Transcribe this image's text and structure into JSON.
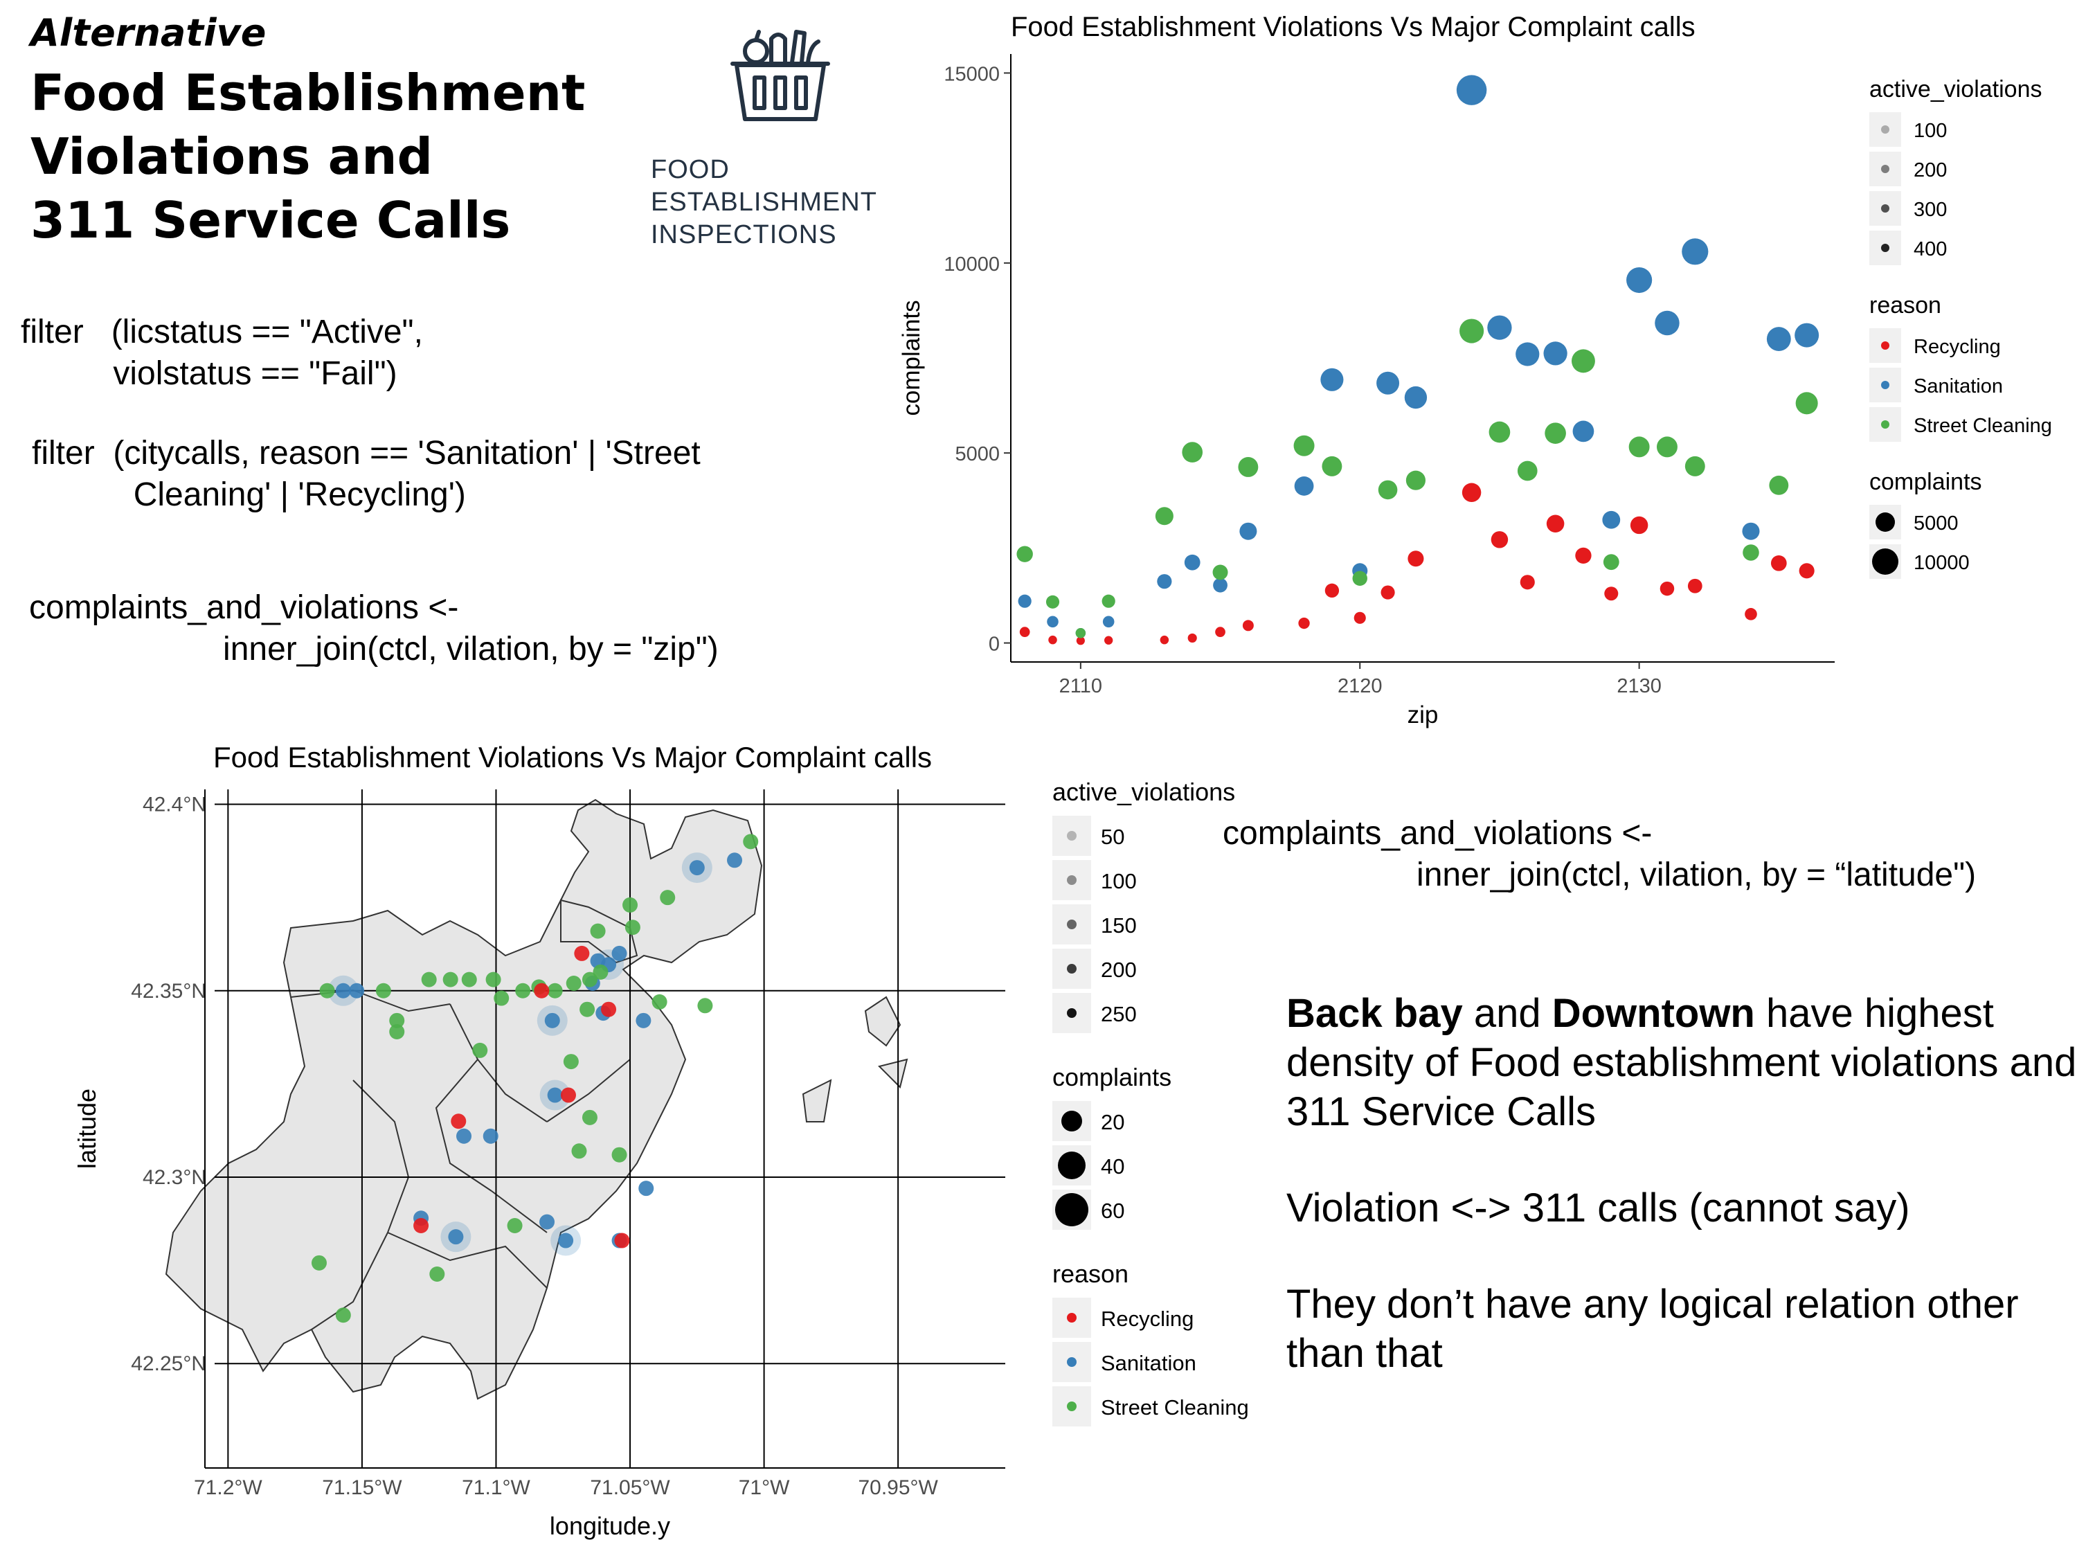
{
  "header": {
    "alt_label": "Alternative",
    "title_lines": [
      "Food Establishment",
      "Violations and",
      "311 Service Calls"
    ]
  },
  "logo": {
    "icon": "basket-icon",
    "text_lines": [
      "FOOD",
      "ESTABLISHMENT",
      "INSPECTIONS"
    ]
  },
  "code": {
    "filter1": "filter   (licstatus == \"Active\",\n          violstatus == \"Fail\")",
    "filter2": "filter  (citycalls, reason == 'Sanitation' | 'Street\n           Cleaning' | 'Recycling')",
    "join_zip": "complaints_and_violations <-\n                     inner_join(ctcl, vilation, by = \"zip\")",
    "join_lat": "complaints_and_violations <-\n                     inner_join(ctcl, vilation, by = “latitude\")"
  },
  "conclusion": {
    "p1_bold1": "Back bay",
    "p1_text1": " and ",
    "p1_bold2": "Downtown",
    "p1_text2": " have highest density of Food establishment violations  and 311 Service Calls",
    "p2": "Violation <-> 311 calls (cannot say)",
    "p3": "They don’t have any logical relation other than that"
  },
  "colors": {
    "Recycling": "#e41a1c",
    "Sanitation": "#377eb8",
    "Street Cleaning": "#4daf4a"
  },
  "chart_data": [
    {
      "type": "scatter",
      "title": "Food Establishment Violations Vs Major Complaint calls",
      "xlabel": "zip",
      "ylabel": "complaints",
      "xlim": [
        2107.5,
        2137
      ],
      "ylim": [
        -500,
        15500
      ],
      "xticks": [
        2110,
        2120,
        2130
      ],
      "yticks": [
        0,
        5000,
        10000,
        15000
      ],
      "grid": false,
      "legend_position": "right",
      "legends": {
        "active_violations": {
          "title": "active_violations",
          "items": [
            "100",
            "200",
            "300",
            "400"
          ]
        },
        "reason": {
          "title": "reason",
          "items": [
            "Recycling",
            "Sanitation",
            "Street Cleaning"
          ]
        },
        "complaints": {
          "title": "complaints",
          "items": [
            "5000",
            "10000"
          ]
        }
      },
      "series": [
        {
          "name": "Recycling",
          "points": [
            [
              2108,
              290
            ],
            [
              2109,
              80
            ],
            [
              2110,
              60
            ],
            [
              2111,
              70
            ],
            [
              2113,
              80
            ],
            [
              2114,
              130
            ],
            [
              2115,
              290
            ],
            [
              2116,
              460
            ],
            [
              2118,
              520
            ],
            [
              2119,
              1380
            ],
            [
              2120,
              660
            ],
            [
              2121,
              1330
            ],
            [
              2122,
              2220
            ],
            [
              2124,
              3960
            ],
            [
              2125,
              2720
            ],
            [
              2126,
              1600
            ],
            [
              2127,
              3140
            ],
            [
              2128,
              2300
            ],
            [
              2129,
              1300
            ],
            [
              2130,
              3100
            ],
            [
              2131,
              1430
            ],
            [
              2132,
              1500
            ],
            [
              2134,
              760
            ],
            [
              2135,
              2100
            ],
            [
              2136,
              1900
            ]
          ]
        },
        {
          "name": "Sanitation",
          "points": [
            [
              2108,
              1100
            ],
            [
              2109,
              560
            ],
            [
              2110,
              260
            ],
            [
              2111,
              560
            ],
            [
              2113,
              1620
            ],
            [
              2114,
              2120
            ],
            [
              2115,
              1520
            ],
            [
              2116,
              2940
            ],
            [
              2118,
              4130
            ],
            [
              2119,
              6930
            ],
            [
              2120,
              1900
            ],
            [
              2121,
              6840
            ],
            [
              2122,
              6460
            ],
            [
              2124,
              14550
            ],
            [
              2125,
              8300
            ],
            [
              2126,
              7600
            ],
            [
              2127,
              7620
            ],
            [
              2128,
              5570
            ],
            [
              2129,
              3240
            ],
            [
              2130,
              9550
            ],
            [
              2131,
              8420
            ],
            [
              2132,
              10300
            ],
            [
              2134,
              2940
            ],
            [
              2135,
              8000
            ],
            [
              2136,
              8100
            ]
          ]
        },
        {
          "name": "Street Cleaning",
          "points": [
            [
              2108,
              2340
            ],
            [
              2109,
              1080
            ],
            [
              2110,
              260
            ],
            [
              2111,
              1100
            ],
            [
              2113,
              3340
            ],
            [
              2114,
              5020
            ],
            [
              2115,
              1860
            ],
            [
              2116,
              4630
            ],
            [
              2118,
              5190
            ],
            [
              2119,
              4650
            ],
            [
              2120,
              1700
            ],
            [
              2121,
              4030
            ],
            [
              2122,
              4280
            ],
            [
              2124,
              8210
            ],
            [
              2125,
              5550
            ],
            [
              2126,
              4530
            ],
            [
              2127,
              5520
            ],
            [
              2128,
              7420
            ],
            [
              2129,
              2130
            ],
            [
              2130,
              5160
            ],
            [
              2131,
              5160
            ],
            [
              2132,
              4650
            ],
            [
              2134,
              2380
            ],
            [
              2135,
              4150
            ],
            [
              2136,
              6310
            ]
          ]
        }
      ]
    },
    {
      "type": "scatter",
      "title": "Food Establishment Violations Vs Major Complaint calls",
      "xlabel": "longitude.y",
      "ylabel": "latitude",
      "xlim": [
        -71.205,
        -70.91
      ],
      "ylim": [
        42.222,
        42.404
      ],
      "xticks": [
        "71.2°W",
        "71.15°W",
        "71.1°W",
        "71.05°W",
        "71°W",
        "70.95°W"
      ],
      "yticks": [
        "42.4°N",
        "42.35°N",
        "42.3°N",
        "42.25°N"
      ],
      "grid": true,
      "legend_position": "right",
      "legends": {
        "active_violations": {
          "title": "active_violations",
          "items": [
            "50",
            "100",
            "150",
            "200",
            "250"
          ]
        },
        "complaints": {
          "title": "complaints",
          "items": [
            "20",
            "40",
            "60"
          ]
        },
        "reason": {
          "title": "reason",
          "items": [
            "Recycling",
            "Sanitation",
            "Street Cleaning"
          ]
        }
      },
      "series": [
        {
          "name": "Sanitation",
          "points": [
            [
              -71.157,
              42.35
            ],
            [
              -71.152,
              42.35
            ],
            [
              -71.062,
              42.358
            ],
            [
              -71.058,
              42.357
            ],
            [
              -71.054,
              42.36
            ],
            [
              -71.064,
              42.352
            ],
            [
              -71.079,
              42.342
            ],
            [
              -71.112,
              42.311
            ],
            [
              -71.102,
              42.311
            ],
            [
              -71.078,
              42.322
            ],
            [
              -71.044,
              42.297
            ],
            [
              -71.128,
              42.289
            ],
            [
              -71.115,
              42.284
            ],
            [
              -71.06,
              42.344
            ],
            [
              -71.011,
              42.385
            ],
            [
              -71.025,
              42.383
            ],
            [
              -71.045,
              42.342
            ],
            [
              -71.081,
              42.288
            ],
            [
              -71.074,
              42.283
            ],
            [
              -71.054,
              42.283
            ]
          ]
        },
        {
          "name": "Street Cleaning",
          "points": [
            [
              -71.163,
              42.35
            ],
            [
              -71.142,
              42.35
            ],
            [
              -71.137,
              42.339
            ],
            [
              -71.137,
              42.342
            ],
            [
              -71.125,
              42.353
            ],
            [
              -71.117,
              42.353
            ],
            [
              -71.11,
              42.353
            ],
            [
              -71.101,
              42.353
            ],
            [
              -71.098,
              42.348
            ],
            [
              -71.09,
              42.35
            ],
            [
              -71.084,
              42.351
            ],
            [
              -71.078,
              42.35
            ],
            [
              -71.071,
              42.352
            ],
            [
              -71.065,
              42.353
            ],
            [
              -71.061,
              42.355
            ],
            [
              -71.062,
              42.366
            ],
            [
              -71.05,
              42.373
            ],
            [
              -71.049,
              42.367
            ],
            [
              -71.039,
              42.347
            ],
            [
              -71.036,
              42.375
            ],
            [
              -71.005,
              42.39
            ],
            [
              -71.022,
              42.346
            ],
            [
              -71.106,
              42.334
            ],
            [
              -71.066,
              42.345
            ],
            [
              -71.072,
              42.331
            ],
            [
              -71.065,
              42.316
            ],
            [
              -71.054,
              42.306
            ],
            [
              -71.093,
              42.287
            ],
            [
              -71.122,
              42.274
            ],
            [
              -71.166,
              42.277
            ],
            [
              -71.157,
              42.263
            ],
            [
              -71.069,
              42.307
            ]
          ]
        },
        {
          "name": "Recycling",
          "points": [
            [
              -71.073,
              42.322
            ],
            [
              -71.058,
              42.345
            ],
            [
              -71.128,
              42.287
            ],
            [
              -71.114,
              42.315
            ],
            [
              -71.053,
              42.283
            ],
            [
              -71.083,
              42.35
            ],
            [
              -71.068,
              42.36
            ]
          ]
        }
      ]
    }
  ]
}
